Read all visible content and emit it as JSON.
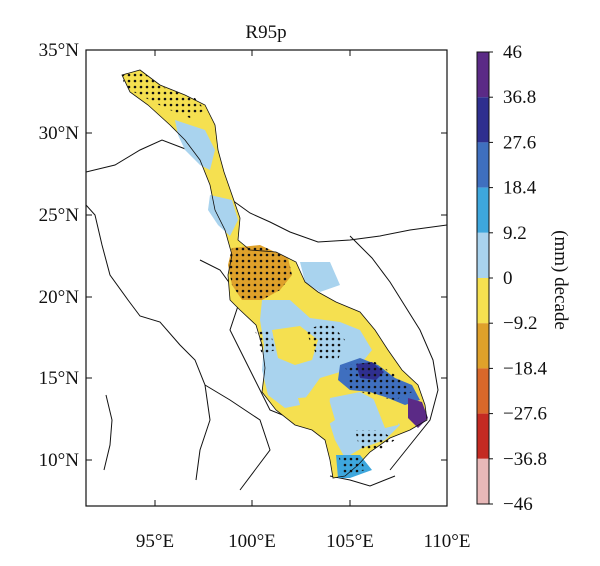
{
  "title": "R95p",
  "colorbar": {
    "unit_label": "(mm) decade",
    "tick_labels": [
      "46",
      "36.8",
      "27.6",
      "18.4",
      "9.2",
      "0",
      "−9.2",
      "−18.4",
      "−27.6",
      "−36.8",
      "−46"
    ],
    "bin_colors": [
      "#5b2a86",
      "#2f2f8f",
      "#3f6fbf",
      "#3ea7dd",
      "#a9d3ee",
      "#f5e050",
      "#dfa12a",
      "#d9682a",
      "#c42a22",
      "#e8b8b8"
    ]
  },
  "axes": {
    "lat_labels": [
      "35°N",
      "30°N",
      "25°N",
      "20°N",
      "15°N",
      "10°N"
    ],
    "lon_labels": [
      "95°E",
      "100°E",
      "105°E",
      "110°E"
    ],
    "lat_range": [
      7,
      35
    ],
    "lon_range": [
      92,
      110
    ]
  },
  "chart_data": {
    "type": "map",
    "variable": "R95p",
    "lat_range": [
      7,
      35
    ],
    "lon_range": [
      92,
      110
    ]
  }
}
